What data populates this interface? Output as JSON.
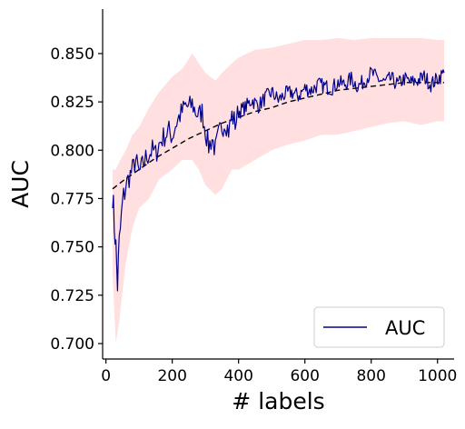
{
  "chart_data": {
    "type": "line",
    "xlabel": "# labels",
    "ylabel": "AUC",
    "xlim": [
      -10,
      1050
    ],
    "ylim": [
      0.692,
      0.873
    ],
    "x_ticks": [
      0,
      200,
      400,
      600,
      800,
      1000
    ],
    "x_tick_labels": [
      "0",
      "200",
      "400",
      "600",
      "800",
      "1000"
    ],
    "y_ticks": [
      0.7,
      0.725,
      0.75,
      0.775,
      0.8,
      0.825,
      0.85
    ],
    "y_tick_labels": [
      "0.700",
      "0.725",
      "0.750",
      "0.775",
      "0.800",
      "0.825",
      "0.850"
    ],
    "grid": false,
    "legend_position": "lower right",
    "legend": [
      {
        "label": "AUC",
        "color": "#00008b"
      }
    ],
    "colors": {
      "line": "#00008b",
      "band": "#ffc0c0",
      "trend": "#000000"
    },
    "series": [
      {
        "name": "AUC",
        "style": "line",
        "x": [
          20,
          25,
          30,
          35,
          40,
          50,
          60,
          70,
          80,
          90,
          100,
          110,
          120,
          130,
          140,
          150,
          160,
          170,
          180,
          190,
          200,
          210,
          220,
          230,
          240,
          250,
          260,
          270,
          280,
          290,
          300,
          310,
          320,
          330,
          340,
          350,
          360,
          370,
          380,
          390,
          400,
          420,
          440,
          460,
          480,
          500,
          520,
          540,
          560,
          580,
          600,
          620,
          640,
          660,
          680,
          700,
          720,
          740,
          760,
          780,
          800,
          820,
          840,
          860,
          880,
          900,
          920,
          940,
          960,
          980,
          1000,
          1020
        ],
        "y": [
          0.778,
          0.762,
          0.75,
          0.73,
          0.752,
          0.772,
          0.782,
          0.786,
          0.79,
          0.795,
          0.788,
          0.792,
          0.796,
          0.798,
          0.8,
          0.798,
          0.803,
          0.806,
          0.808,
          0.81,
          0.807,
          0.813,
          0.817,
          0.82,
          0.823,
          0.822,
          0.824,
          0.82,
          0.818,
          0.82,
          0.81,
          0.802,
          0.806,
          0.8,
          0.808,
          0.812,
          0.815,
          0.81,
          0.818,
          0.814,
          0.82,
          0.822,
          0.826,
          0.823,
          0.827,
          0.83,
          0.826,
          0.829,
          0.83,
          0.828,
          0.832,
          0.831,
          0.834,
          0.833,
          0.832,
          0.835,
          0.834,
          0.837,
          0.833,
          0.836,
          0.84,
          0.837,
          0.835,
          0.837,
          0.834,
          0.837,
          0.835,
          0.836,
          0.838,
          0.834,
          0.837,
          0.84
        ]
      },
      {
        "style": "dashed",
        "x": [
          20,
          50,
          100,
          150,
          200,
          250,
          300,
          350,
          400,
          450,
          500,
          550,
          600,
          650,
          700,
          750,
          800,
          850,
          900,
          950,
          1000,
          1020
        ],
        "y": [
          0.78,
          0.784,
          0.79,
          0.796,
          0.801,
          0.806,
          0.81,
          0.814,
          0.817,
          0.82,
          0.822,
          0.825,
          0.827,
          0.829,
          0.831,
          0.832,
          0.833,
          0.834,
          0.835,
          0.835,
          0.835,
          0.835
        ]
      },
      {
        "style": "band",
        "x": [
          20,
          30,
          40,
          60,
          80,
          100,
          130,
          160,
          200,
          230,
          260,
          280,
          300,
          330,
          350,
          380,
          400,
          450,
          500,
          550,
          600,
          650,
          700,
          750,
          800,
          850,
          900,
          950,
          1000,
          1020
        ],
        "lower": [
          0.735,
          0.7,
          0.712,
          0.742,
          0.76,
          0.77,
          0.775,
          0.785,
          0.79,
          0.795,
          0.795,
          0.79,
          0.782,
          0.777,
          0.78,
          0.79,
          0.79,
          0.795,
          0.8,
          0.803,
          0.805,
          0.808,
          0.808,
          0.81,
          0.812,
          0.814,
          0.815,
          0.813,
          0.815,
          0.815
        ],
        "upper": [
          0.79,
          0.79,
          0.794,
          0.8,
          0.808,
          0.812,
          0.822,
          0.83,
          0.838,
          0.842,
          0.85,
          0.845,
          0.84,
          0.836,
          0.84,
          0.845,
          0.848,
          0.852,
          0.853,
          0.855,
          0.857,
          0.857,
          0.858,
          0.857,
          0.858,
          0.858,
          0.858,
          0.858,
          0.857,
          0.857
        ]
      }
    ]
  }
}
